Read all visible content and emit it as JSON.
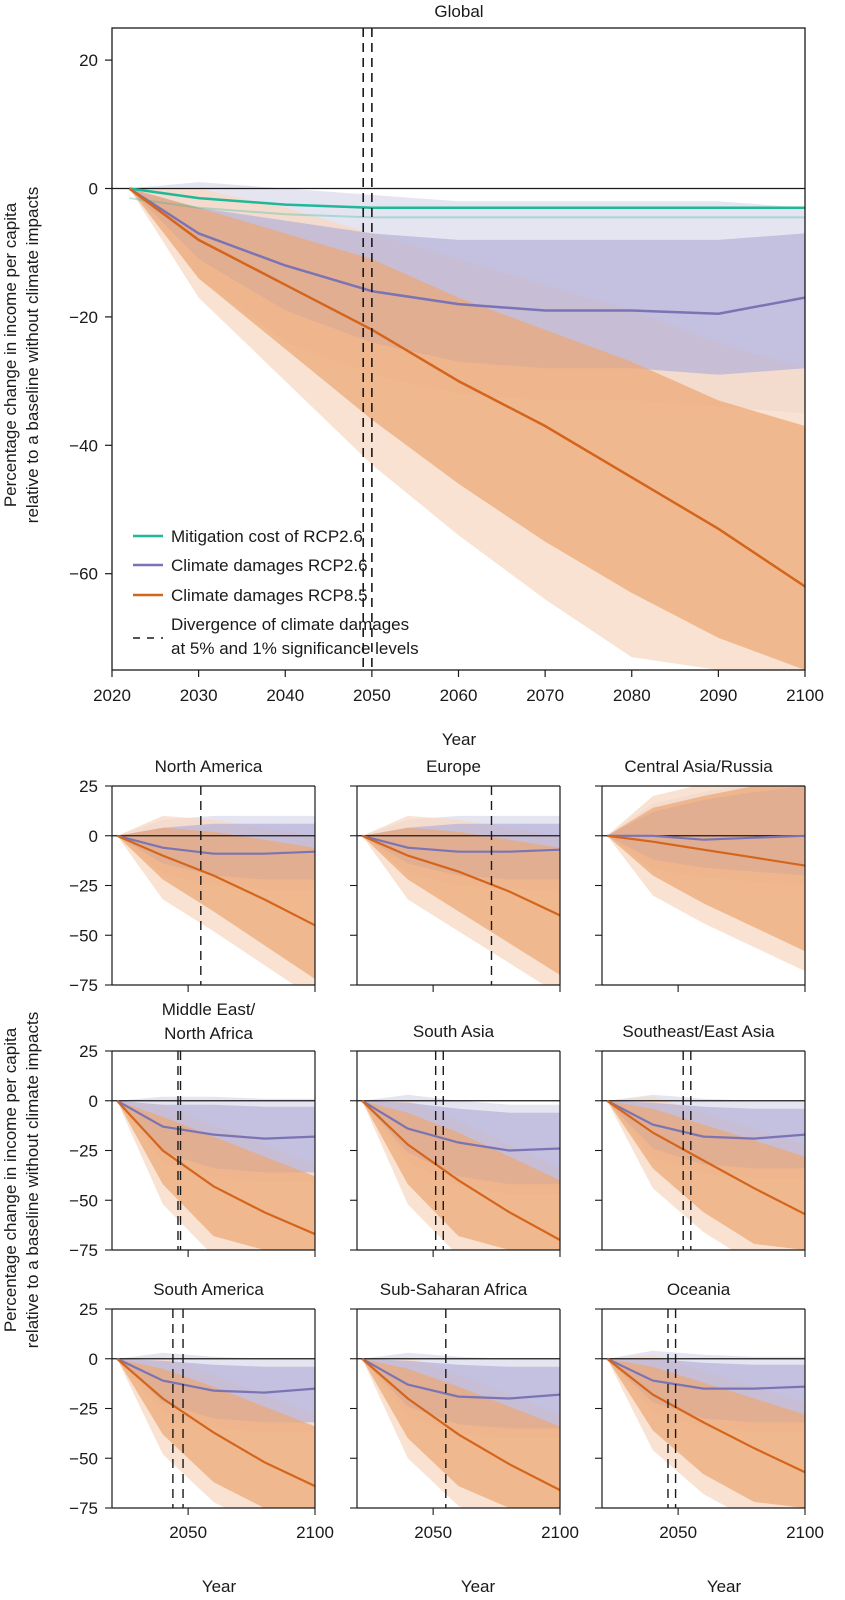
{
  "colors": {
    "mitigation": "#1fb898",
    "rcp26": "#7a73b4",
    "rcp85": "#d4651c",
    "rcp26_band_inner": "#b8b4d8",
    "rcp26_band_outer": "#dfddee",
    "rcp85_band_inner": "#eda674",
    "rcp85_band_outer": "#f7d8c2"
  },
  "figure": {
    "shared_ylabel_line1": "Percentage change in income per capita",
    "shared_ylabel_line2": "relative to a baseline without climate impacts"
  },
  "chart_data": [
    {
      "id": "global",
      "type": "line",
      "title": "Global",
      "xlabel": "Year",
      "ylabel_line1": "Percentage change in income per capita",
      "ylabel_line2": "relative to a baseline without climate impacts",
      "xlim": [
        2020,
        2100
      ],
      "ylim": [
        -75,
        25
      ],
      "xticks": [
        2020,
        2030,
        2040,
        2050,
        2060,
        2070,
        2080,
        2090,
        2100
      ],
      "yticks": [
        20,
        0,
        -20,
        -40,
        -60
      ],
      "ytick_labels": [
        "20",
        "0",
        "−20",
        "−40",
        "−60"
      ],
      "x": [
        2022,
        2030,
        2040,
        2050,
        2060,
        2070,
        2080,
        2090,
        2100
      ],
      "series": [
        {
          "name": "Mitigation cost of RCP2.6",
          "key": "mitigation",
          "values": [
            0,
            -1.5,
            -2.5,
            -3,
            -3,
            -3,
            -3,
            -3,
            -3
          ]
        },
        {
          "name": "Climate damages RCP2.6",
          "key": "rcp26",
          "values": [
            0,
            -7,
            -12,
            -16,
            -18,
            -19,
            -19,
            -19.5,
            -17
          ],
          "band_inner": [
            [
              0,
              0
            ],
            [
              -3,
              -11
            ],
            [
              -5,
              -19
            ],
            [
              -7,
              -24
            ],
            [
              -8,
              -27
            ],
            [
              -8,
              -28
            ],
            [
              -8,
              -28
            ],
            [
              -8,
              -29
            ],
            [
              -7,
              -28
            ]
          ],
          "band_outer": [
            [
              0,
              0
            ],
            [
              1,
              -14
            ],
            [
              0,
              -24
            ],
            [
              -1,
              -29
            ],
            [
              -2,
              -32
            ],
            [
              -2,
              -33
            ],
            [
              -2,
              -33
            ],
            [
              -2,
              -34
            ],
            [
              -3,
              -35
            ]
          ]
        },
        {
          "name": "Climate damages RCP8.5",
          "key": "rcp85",
          "values": [
            0,
            -8,
            -15,
            -22,
            -30,
            -37,
            -45,
            -53,
            -62
          ],
          "band_inner": [
            [
              0,
              0
            ],
            [
              -3,
              -14
            ],
            [
              -7,
              -25
            ],
            [
              -11,
              -36
            ],
            [
              -17,
              -46
            ],
            [
              -22,
              -55
            ],
            [
              -27,
              -63
            ],
            [
              -33,
              -70
            ],
            [
              -37,
              -75
            ]
          ],
          "band_outer": [
            [
              0,
              0
            ],
            [
              0,
              -17
            ],
            [
              -3,
              -30
            ],
            [
              -7,
              -43
            ],
            [
              -11,
              -54
            ],
            [
              -15,
              -64
            ],
            [
              -19,
              -73
            ],
            [
              -24,
              -75
            ],
            [
              -28,
              -75
            ]
          ]
        }
      ],
      "divergence_years": [
        2049,
        2050
      ],
      "legend": [
        {
          "key": "mitigation",
          "label": "Mitigation cost of RCP2.6"
        },
        {
          "key": "rcp26",
          "label": "Climate damages RCP2.6"
        },
        {
          "key": "rcp85",
          "label": "Climate damages RCP8.5"
        },
        {
          "key": "divergence",
          "label_line1": "Divergence of climate damages",
          "label_line2": "at 5% and 1% significance levels"
        }
      ],
      "legend_position": "lower-left"
    },
    {
      "id": "north-america",
      "type": "line",
      "title": "North America",
      "xlim": [
        2020,
        2100
      ],
      "ylim": [
        -75,
        25
      ],
      "x": [
        2022,
        2040,
        2060,
        2080,
        2100
      ],
      "rcp26": [
        0,
        -6,
        -9,
        -9,
        -8
      ],
      "rcp26_band": [
        [
          4,
          -14
        ],
        [
          6,
          -20
        ],
        [
          6,
          -22
        ],
        [
          6,
          -22
        ]
      ],
      "rcp85": [
        0,
        -10,
        -20,
        -32,
        -45
      ],
      "rcp85_band": [
        [
          4,
          -22
        ],
        [
          2,
          -38
        ],
        [
          -2,
          -55
        ],
        [
          -6,
          -72
        ]
      ],
      "divergence_years": [
        2055
      ]
    },
    {
      "id": "europe",
      "type": "line",
      "title": "Europe",
      "xlim": [
        2020,
        2100
      ],
      "ylim": [
        -75,
        25
      ],
      "x": [
        2022,
        2040,
        2060,
        2080,
        2100
      ],
      "rcp26": [
        0,
        -6,
        -8,
        -8,
        -7
      ],
      "rcp26_band": [
        [
          4,
          -14
        ],
        [
          6,
          -20
        ],
        [
          6,
          -22
        ],
        [
          6,
          -22
        ]
      ],
      "rcp85": [
        0,
        -10,
        -18,
        -28,
        -40
      ],
      "rcp85_band": [
        [
          4,
          -22
        ],
        [
          2,
          -38
        ],
        [
          -2,
          -54
        ],
        [
          -6,
          -70
        ]
      ],
      "divergence_years": [
        2073
      ]
    },
    {
      "id": "central-asia-russia",
      "type": "line",
      "title": "Central Asia/Russia",
      "xlim": [
        2020,
        2100
      ],
      "ylim": [
        -75,
        25
      ],
      "x": [
        2022,
        2040,
        2060,
        2080,
        2100
      ],
      "rcp26": [
        0,
        0,
        -2,
        -1,
        0
      ],
      "rcp26_band": [
        [
          12,
          -12
        ],
        [
          18,
          -16
        ],
        [
          22,
          -18
        ],
        [
          25,
          -20
        ]
      ],
      "rcp85": [
        0,
        -3,
        -7,
        -11,
        -15
      ],
      "rcp85_band": [
        [
          14,
          -20
        ],
        [
          20,
          -34
        ],
        [
          25,
          -46
        ],
        [
          25,
          -58
        ]
      ],
      "divergence_years": []
    },
    {
      "id": "middle-east-north-africa",
      "type": "line",
      "title_line1": "Middle East/",
      "title_line2": "North Africa",
      "xlim": [
        2020,
        2100
      ],
      "ylim": [
        -75,
        25
      ],
      "x": [
        2022,
        2040,
        2060,
        2080,
        2100
      ],
      "rcp26": [
        0,
        -13,
        -17,
        -19,
        -18
      ],
      "rcp26_band": [
        [
          -2,
          -26
        ],
        [
          -2,
          -34
        ],
        [
          -3,
          -36
        ],
        [
          -3,
          -36
        ]
      ],
      "rcp85": [
        0,
        -25,
        -43,
        -56,
        -67
      ],
      "rcp85_band": [
        [
          -8,
          -42
        ],
        [
          -18,
          -68
        ],
        [
          -28,
          -75
        ],
        [
          -38,
          -75
        ]
      ],
      "divergence_years": [
        2046,
        2047
      ]
    },
    {
      "id": "south-asia",
      "type": "line",
      "title": "South Asia",
      "xlim": [
        2020,
        2100
      ],
      "ylim": [
        -75,
        25
      ],
      "x": [
        2022,
        2040,
        2060,
        2080,
        2100
      ],
      "rcp26": [
        0,
        -14,
        -21,
        -25,
        -24
      ],
      "rcp26_band": [
        [
          -1,
          -26
        ],
        [
          -4,
          -38
        ],
        [
          -6,
          -42
        ],
        [
          -6,
          -42
        ]
      ],
      "rcp85": [
        0,
        -22,
        -40,
        -56,
        -70
      ],
      "rcp85_band": [
        [
          -6,
          -42
        ],
        [
          -16,
          -68
        ],
        [
          -28,
          -75
        ],
        [
          -40,
          -75
        ]
      ],
      "divergence_years": [
        2051,
        2054
      ]
    },
    {
      "id": "southeast-east-asia",
      "type": "line",
      "title": "Southeast/East Asia",
      "xlim": [
        2020,
        2100
      ],
      "ylim": [
        -75,
        25
      ],
      "x": [
        2022,
        2040,
        2060,
        2080,
        2100
      ],
      "rcp26": [
        0,
        -12,
        -18,
        -19,
        -17
      ],
      "rcp26_band": [
        [
          -1,
          -24
        ],
        [
          -3,
          -32
        ],
        [
          -4,
          -34
        ],
        [
          -4,
          -34
        ]
      ],
      "rcp85": [
        0,
        -16,
        -30,
        -44,
        -57
      ],
      "rcp85_band": [
        [
          -4,
          -34
        ],
        [
          -12,
          -56
        ],
        [
          -20,
          -72
        ],
        [
          -28,
          -75
        ]
      ],
      "divergence_years": [
        2052,
        2055
      ]
    },
    {
      "id": "south-america",
      "type": "line",
      "title": "South America",
      "xlim": [
        2020,
        2100
      ],
      "ylim": [
        -75,
        25
      ],
      "x": [
        2022,
        2040,
        2060,
        2080,
        2100
      ],
      "rcp26": [
        0,
        -11,
        -16,
        -17,
        -15
      ],
      "rcp26_band": [
        [
          -1,
          -22
        ],
        [
          -3,
          -30
        ],
        [
          -4,
          -32
        ],
        [
          -4,
          -32
        ]
      ],
      "rcp85": [
        0,
        -20,
        -37,
        -52,
        -64
      ],
      "rcp85_band": [
        [
          -5,
          -38
        ],
        [
          -14,
          -62
        ],
        [
          -24,
          -75
        ],
        [
          -34,
          -75
        ]
      ],
      "divergence_years": [
        2044,
        2048
      ]
    },
    {
      "id": "sub-saharan-africa",
      "type": "line",
      "title": "Sub-Saharan Africa",
      "xlim": [
        2020,
        2100
      ],
      "ylim": [
        -75,
        25
      ],
      "x": [
        2022,
        2040,
        2060,
        2080,
        2100
      ],
      "rcp26": [
        0,
        -13,
        -19,
        -20,
        -18
      ],
      "rcp26_band": [
        [
          -1,
          -24
        ],
        [
          -3,
          -33
        ],
        [
          -4,
          -35
        ],
        [
          -4,
          -35
        ]
      ],
      "rcp85": [
        0,
        -20,
        -38,
        -53,
        -66
      ],
      "rcp85_band": [
        [
          -5,
          -40
        ],
        [
          -14,
          -64
        ],
        [
          -24,
          -75
        ],
        [
          -34,
          -75
        ]
      ],
      "divergence_years": [
        2055
      ]
    },
    {
      "id": "oceania",
      "type": "line",
      "title": "Oceania",
      "xlim": [
        2020,
        2100
      ],
      "ylim": [
        -75,
        25
      ],
      "x": [
        2022,
        2040,
        2060,
        2080,
        2100
      ],
      "rcp26": [
        0,
        -11,
        -15,
        -15,
        -14
      ],
      "rcp26_band": [
        [
          0,
          -22
        ],
        [
          -2,
          -30
        ],
        [
          -3,
          -32
        ],
        [
          -3,
          -32
        ]
      ],
      "rcp85": [
        0,
        -18,
        -32,
        -45,
        -57
      ],
      "rcp85_band": [
        [
          -4,
          -36
        ],
        [
          -12,
          -58
        ],
        [
          -20,
          -72
        ],
        [
          -28,
          -75
        ]
      ],
      "divergence_years": [
        2046,
        2049
      ]
    }
  ],
  "regional_axes": {
    "yticks": [
      25,
      0,
      -25,
      -50,
      -75
    ],
    "ytick_labels": [
      "25",
      "0",
      "−25",
      "−50",
      "−75"
    ],
    "xticks": [
      2050,
      2100
    ],
    "xtick_labels": [
      "2050",
      "2100"
    ],
    "xlabel": "Year"
  }
}
